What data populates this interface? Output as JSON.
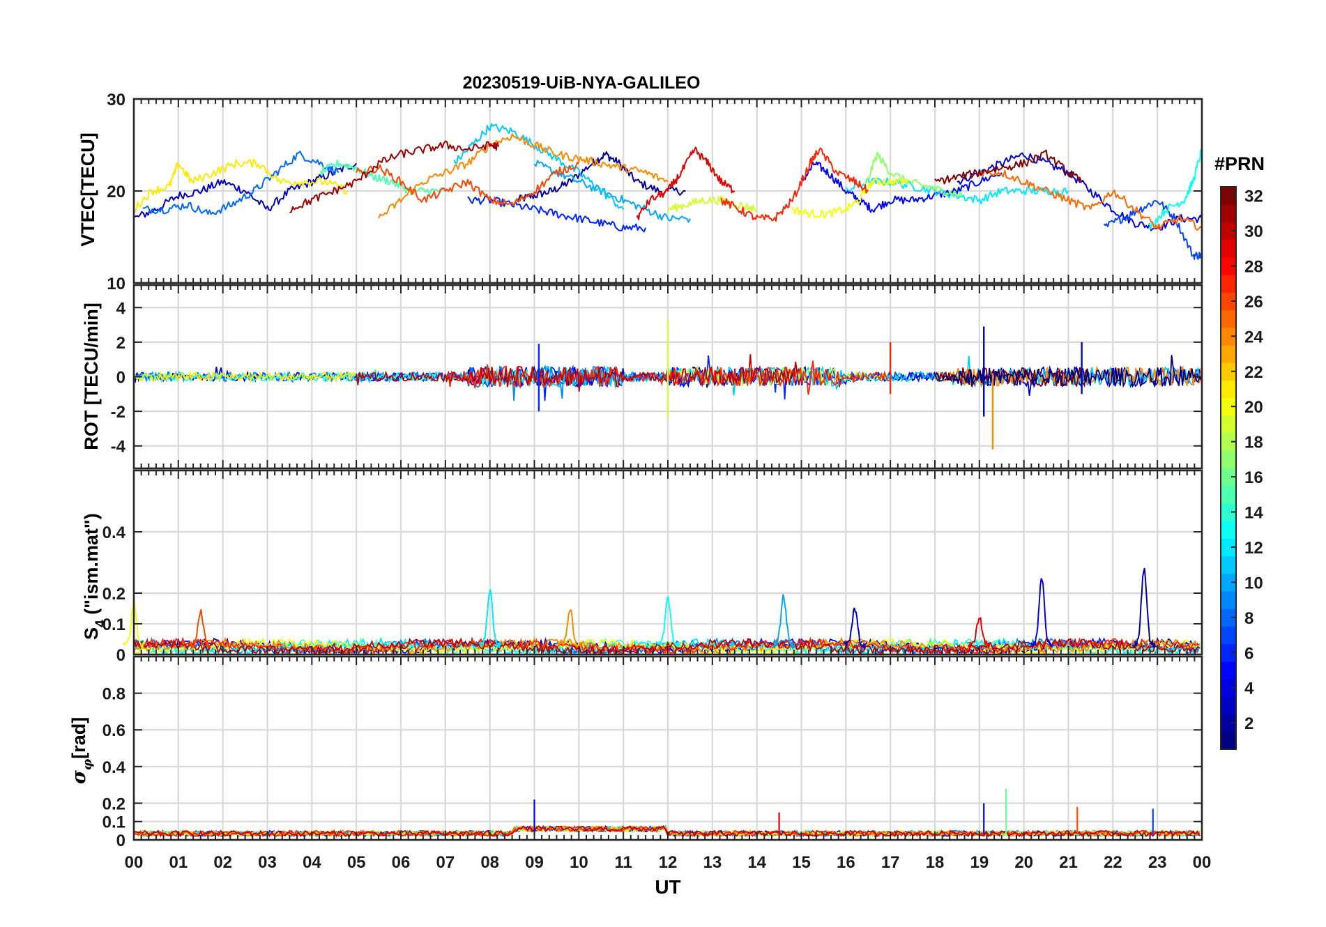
{
  "chart_data": [
    {
      "type": "line",
      "panel": "vtec",
      "title": "20230519-UiB-NYA-GALILEO",
      "ylabel": "VTEC[TECU]",
      "ylim": [
        10,
        30
      ],
      "yticks": [
        10,
        20,
        30
      ],
      "xlim": [
        0,
        24
      ],
      "grid": true,
      "series": [
        {
          "prn": 2,
          "x": [
            8.6,
            9.0,
            9.4,
            9.8,
            10.3,
            10.6,
            10.9,
            11.3,
            11.8,
            12.4
          ],
          "y": [
            19,
            19.5,
            20,
            21,
            23,
            24,
            23,
            21,
            20,
            20
          ]
        },
        {
          "prn": 3,
          "x": [
            0.0,
            0.5,
            1.0,
            1.5,
            2.0,
            2.5,
            3.0,
            3.5,
            4.0,
            4.5,
            5.0
          ],
          "y": [
            17,
            18,
            19.5,
            20,
            21,
            20,
            18,
            20,
            21,
            22,
            23
          ]
        },
        {
          "prn": 4,
          "x": [
            18.5,
            19.0,
            19.5,
            20.0,
            20.5,
            21.0,
            21.5,
            22.0,
            22.5,
            23.0,
            23.5,
            24.0
          ],
          "y": [
            21,
            22,
            23,
            24,
            23,
            22,
            20,
            18,
            16.5,
            16,
            17,
            17
          ]
        },
        {
          "prn": 5,
          "x": [
            15.0,
            15.3,
            15.6,
            16.0,
            16.3,
            16.6,
            17.0,
            17.5,
            18.0,
            18.5,
            19.0,
            19.5
          ],
          "y": [
            21,
            23,
            22,
            20,
            19,
            18,
            19,
            19,
            19.5,
            20,
            21,
            22
          ]
        },
        {
          "prn": 6,
          "x": [
            7.5,
            8.0,
            8.5,
            9.0,
            9.5,
            10.0,
            10.5,
            11.0,
            11.5
          ],
          "y": [
            19,
            19,
            18.5,
            18,
            17.5,
            17,
            16.5,
            16,
            16
          ]
        },
        {
          "prn": 7,
          "x": [
            21.8,
            22.2,
            22.6,
            23.0,
            23.4,
            23.8,
            24.0
          ],
          "y": [
            16,
            17,
            18,
            19,
            17,
            13,
            13
          ]
        },
        {
          "prn": 8,
          "x": [
            0.2,
            0.7,
            1.2,
            1.7,
            2.2,
            2.7,
            3.2,
            3.7,
            4.2,
            4.6
          ],
          "y": [
            18,
            18,
            18.5,
            17.5,
            18.5,
            20,
            22,
            24,
            23,
            22
          ]
        },
        {
          "prn": 10,
          "x": [
            9.0,
            9.5,
            10.0,
            10.5,
            11.0,
            11.5,
            12.0,
            12.5
          ],
          "y": [
            23,
            22,
            21,
            20,
            19,
            18,
            17,
            17
          ]
        },
        {
          "prn": 11,
          "x": [
            7.2,
            7.6,
            8.0,
            8.5,
            9.0,
            9.5,
            10.0,
            10.5,
            11.0
          ],
          "y": [
            23,
            25,
            27,
            26.5,
            25,
            23.5,
            22,
            20,
            18
          ]
        },
        {
          "prn": 12,
          "x": [
            16.0,
            16.5,
            17.0,
            17.5,
            18.0,
            18.5,
            19.0,
            19.5,
            20.0,
            20.5,
            21.0
          ],
          "y": [
            20,
            21,
            21,
            20.5,
            20,
            19.5,
            19,
            20,
            20,
            20,
            20
          ]
        },
        {
          "prn": 13,
          "x": [
            22.8,
            23.2,
            23.6,
            23.8,
            24.0
          ],
          "y": [
            16,
            18,
            19,
            21,
            24.5
          ]
        },
        {
          "prn": 15,
          "x": [
            4.2,
            4.6,
            5.0,
            5.4,
            5.8,
            6.2,
            6.6,
            7.0
          ],
          "y": [
            22,
            23,
            22.5,
            21.5,
            21,
            20,
            20,
            20
          ]
        },
        {
          "prn": 17,
          "x": [
            16.4,
            16.7,
            17.0,
            17.4,
            17.8,
            18.2,
            18.6
          ],
          "y": [
            20,
            24,
            22,
            21,
            20.5,
            20,
            19.5
          ]
        },
        {
          "prn": 19,
          "x": [
            12.0,
            12.4,
            12.8,
            13.2,
            13.6,
            14.0
          ],
          "y": [
            18,
            18.5,
            19,
            19,
            18.5,
            18
          ]
        },
        {
          "prn": 20,
          "x": [
            14.8,
            15.2,
            15.6,
            16.0,
            16.3,
            16.6,
            17.0,
            17.4
          ],
          "y": [
            18,
            17.5,
            17.5,
            18,
            19,
            21,
            21,
            21
          ]
        },
        {
          "prn": 21,
          "x": [
            0.0,
            0.4,
            0.8,
            1.0,
            1.3,
            1.8,
            2.3,
            2.8,
            3.3,
            3.8,
            4.3,
            4.8
          ],
          "y": [
            18,
            20,
            20.5,
            23,
            21,
            22,
            23,
            23,
            21,
            21,
            21,
            20
          ]
        },
        {
          "prn": 24,
          "x": [
            5.5,
            6.0,
            6.5,
            7.0,
            7.5,
            8.0,
            8.5,
            9.0,
            9.5,
            10.0,
            10.5,
            11.0,
            11.5,
            12.0
          ],
          "y": [
            17,
            19,
            21,
            22,
            23,
            25,
            26,
            25,
            24,
            23.5,
            23,
            22.5,
            22,
            21
          ]
        },
        {
          "prn": 25,
          "x": [
            19.0,
            19.5,
            20.0,
            20.5,
            21.0,
            21.5,
            22.0,
            22.5,
            23.0,
            23.5,
            24.0
          ],
          "y": [
            22,
            22,
            21,
            20,
            19,
            18,
            20,
            18,
            16,
            17,
            16
          ]
        },
        {
          "prn": 26,
          "x": [
            5.0,
            5.5,
            6.0,
            6.5,
            7.0,
            7.5,
            8.0,
            8.5,
            9.0,
            9.5,
            10.0
          ],
          "y": [
            22,
            22.5,
            21,
            19,
            20,
            21,
            19,
            18.5,
            20,
            22,
            23
          ]
        },
        {
          "prn": 27,
          "x": [
            13.2,
            13.6,
            14.0,
            14.4,
            14.8,
            15.2,
            15.4,
            15.8,
            16.2,
            16.5
          ],
          "y": [
            19,
            18,
            17,
            17,
            19,
            23,
            24.5,
            22,
            21,
            20
          ]
        },
        {
          "prn": 29,
          "x": [
            11.3,
            11.6,
            12.0,
            12.3,
            12.6,
            12.9,
            13.2,
            13.5
          ],
          "y": [
            17,
            19,
            20,
            22,
            24.5,
            23,
            21,
            20
          ]
        },
        {
          "prn": 31,
          "x": [
            3.5,
            4.0,
            4.5,
            5.0,
            5.5,
            6.0,
            6.5,
            7.0,
            7.5,
            8.0,
            8.2
          ],
          "y": [
            18,
            19,
            20,
            21,
            23,
            24,
            24.5,
            25,
            24.5,
            25,
            24.8
          ]
        },
        {
          "prn": 32,
          "x": [
            18.0,
            18.5,
            19.0,
            19.5,
            20.0,
            20.5,
            21.0,
            21.3
          ],
          "y": [
            21,
            21.5,
            22,
            22.5,
            23,
            24,
            22,
            21
          ]
        }
      ]
    },
    {
      "type": "line",
      "panel": "rot",
      "ylabel": "ROT [TECU/min]",
      "ylim": [
        -5.3,
        5.3
      ],
      "yticks": [
        -4,
        -2,
        0,
        2,
        4
      ],
      "xlim": [
        0,
        24
      ],
      "grid": true,
      "description_of_traces": "noisy traces around 0 for all PRNs",
      "spikes": [
        {
          "prn": 19,
          "x": 12.0,
          "min": -2.4,
          "max": 3.3
        },
        {
          "prn": 24,
          "x": 19.3,
          "min": -4.2,
          "max": 0.2
        },
        {
          "prn": 3,
          "x": 19.1,
          "min": -2.3,
          "max": 2.9
        },
        {
          "prn": 6,
          "x": 9.1,
          "min": -2.0,
          "max": 1.9
        },
        {
          "prn": 27,
          "x": 17.0,
          "min": -1.0,
          "max": 2.0
        },
        {
          "prn": 4,
          "x": 21.3,
          "min": -1.0,
          "max": 2.0
        }
      ]
    },
    {
      "type": "line",
      "panel": "s4",
      "ylabel": "S4 (\"ism.mat\")",
      "ylim": [
        0,
        0.6
      ],
      "yticks": [
        0,
        0.1,
        0.2,
        0.4
      ],
      "xlim": [
        0,
        24
      ],
      "grid": true,
      "peaks": [
        {
          "prn": 20,
          "x": 0.0,
          "y": 0.17
        },
        {
          "prn": 26,
          "x": 1.5,
          "y": 0.14
        },
        {
          "prn": 12,
          "x": 8.0,
          "y": 0.21
        },
        {
          "prn": 24,
          "x": 9.8,
          "y": 0.15
        },
        {
          "prn": 13,
          "x": 12.0,
          "y": 0.18
        },
        {
          "prn": 10,
          "x": 14.6,
          "y": 0.19
        },
        {
          "prn": 3,
          "x": 16.2,
          "y": 0.15
        },
        {
          "prn": 29,
          "x": 19.0,
          "y": 0.12
        },
        {
          "prn": 4,
          "x": 20.4,
          "y": 0.25
        },
        {
          "prn": 2,
          "x": 22.7,
          "y": 0.28
        }
      ]
    },
    {
      "type": "line",
      "panel": "sigma_phi",
      "ylabel": "σφ[rad]",
      "ylim": [
        0,
        1.0
      ],
      "yticks": [
        0,
        0.1,
        0.2,
        0.4,
        0.6,
        0.8
      ],
      "xlim": [
        0,
        24
      ],
      "xticks": [
        "00",
        "01",
        "02",
        "03",
        "04",
        "05",
        "06",
        "07",
        "08",
        "09",
        "10",
        "11",
        "12",
        "13",
        "14",
        "15",
        "16",
        "17",
        "18",
        "19",
        "20",
        "21",
        "22",
        "23",
        "00"
      ],
      "xlabel": "UT",
      "grid": true,
      "peaks": [
        {
          "prn": 5,
          "x": 9.0,
          "y": 0.22
        },
        {
          "prn": 4,
          "x": 19.1,
          "y": 0.2
        },
        {
          "prn": 16,
          "x": 19.6,
          "y": 0.28
        },
        {
          "prn": 26,
          "x": 21.2,
          "y": 0.18
        },
        {
          "prn": 7,
          "x": 22.9,
          "y": 0.17
        },
        {
          "prn": 29,
          "x": 14.5,
          "y": 0.15
        }
      ]
    }
  ],
  "colorbar": {
    "title": "#PRN",
    "min": 1,
    "max": 32,
    "ticks": [
      2,
      4,
      6,
      8,
      10,
      12,
      14,
      16,
      18,
      20,
      22,
      24,
      26,
      28,
      30,
      32
    ],
    "colormap": "jet"
  }
}
